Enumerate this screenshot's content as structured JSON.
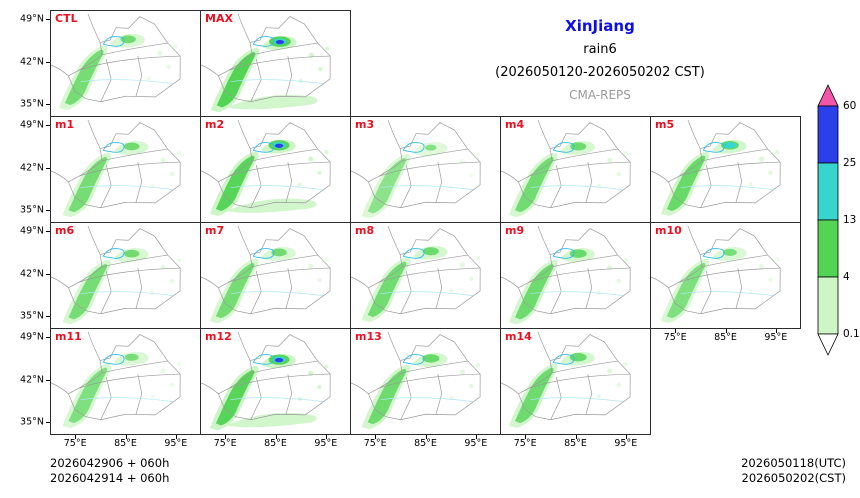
{
  "title": {
    "region": "XinJiang",
    "variable": "rain6",
    "period": "(2026050120-2026050202 CST)",
    "model": "CMA-REPS"
  },
  "panels": [
    {
      "label": "CTL"
    },
    {
      "label": "MAX"
    },
    {
      "label": "m1"
    },
    {
      "label": "m2"
    },
    {
      "label": "m3"
    },
    {
      "label": "m4"
    },
    {
      "label": "m5"
    },
    {
      "label": "m6"
    },
    {
      "label": "m7"
    },
    {
      "label": "m8"
    },
    {
      "label": "m9"
    },
    {
      "label": "m10"
    },
    {
      "label": "m11"
    },
    {
      "label": "m12"
    },
    {
      "label": "m13"
    },
    {
      "label": "m14"
    }
  ],
  "axes": {
    "lat_ticks": [
      "49°N",
      "42°N",
      "35°N"
    ],
    "lon_ticks": [
      "75°E",
      "85°E",
      "95°E"
    ]
  },
  "colorbar": {
    "levels": [
      "0.1",
      "4",
      "13",
      "25",
      "60"
    ],
    "segment_colors": [
      "#cdf5c6",
      "#53d455",
      "#38d5ce",
      "#2b3fea"
    ],
    "over_color": "#f157a8",
    "under_color": "#ffffff"
  },
  "footer": {
    "init_lines": [
      "2026042906  +  060h",
      "2026042914  +  060h"
    ],
    "valid_utc": "2026050118(UTC)",
    "valid_cst": "2026050202(CST)"
  },
  "chart_data": {
    "type": "heatmap",
    "subtype": "ensemble-precipitation-map-grid",
    "title": "XinJiang rain6 (2026050120-2026050202 CST)",
    "model": "CMA-REPS",
    "panels": [
      "CTL",
      "MAX",
      "m1",
      "m2",
      "m3",
      "m4",
      "m5",
      "m6",
      "m7",
      "m8",
      "m9",
      "m10",
      "m11",
      "m12",
      "m13",
      "m14"
    ],
    "grid_layout": "row1: CTL, MAX; row2: m1-m5; row3: m6-m10; row4: m11-m14",
    "colorbar_levels_mm": [
      0.1,
      4,
      13,
      25,
      60
    ],
    "colorbar_colors_low_to_high": [
      "#cdf5c6",
      "#53d455",
      "#38d5ce",
      "#2b3fea"
    ],
    "colorbar_over_color": "#f157a8",
    "lon_ticks_deg_e": [
      75,
      85,
      95
    ],
    "lat_ticks_deg_n": [
      35,
      42,
      49
    ],
    "init_times": [
      "2026042906 + 060h",
      "2026042914 + 060h"
    ],
    "valid_time_utc": "2026050118(UTC)",
    "valid_time_cst": "2026050202(CST)"
  }
}
